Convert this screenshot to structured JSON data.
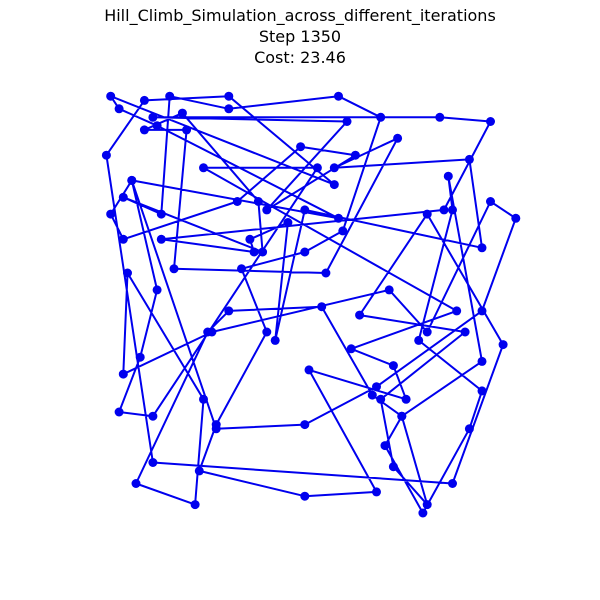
{
  "chart_data": {
    "type": "line",
    "title": "Hill_Climb_Simulation_across_different_iterations",
    "subtitle_step": "Step 1350",
    "subtitle_cost": "Cost: 23.46",
    "xlim": [
      0,
      1
    ],
    "ylim": [
      0,
      1
    ],
    "axes_visible": false,
    "grid": false,
    "colors": {
      "series": "#0000ee"
    },
    "series": [
      {
        "closed": true,
        "x": [
          0.02,
          0.11,
          0.31,
          0.56,
          0.03,
          0.05,
          0.14,
          0.57,
          0.08,
          0.03,
          0.06,
          0.33,
          0.48,
          0.61,
          0.4,
          0.59,
          0.13,
          0.81,
          0.93,
          0.82,
          0.15,
          0.37,
          0.36,
          0.45,
          0.42,
          0.49,
          0.91,
          0.88,
          0.56,
          0.71,
          0.54,
          0.18,
          0.21,
          0.11,
          0.2,
          0.38,
          0.39,
          0.06,
          0.15,
          0.17,
          0.31,
          0.57,
          0.67,
          0.58,
          0.49,
          0.34,
          0.4,
          0.28,
          0.24,
          0.49,
          0.66,
          0.5,
          0.73,
          0.7,
          0.6,
          0.85,
          0.25,
          0.52,
          0.13,
          0.05,
          0.1,
          0.14,
          0.08,
          0.28,
          0.49,
          0.66,
          0.91,
          0.99,
          0.93,
          0.78,
          0.69,
          0.27,
          0.06,
          0.07,
          0.25,
          0.23,
          0.09,
          0.26,
          0.31,
          0.53,
          0.65,
          0.72,
          0.91,
          0.83,
          0.84,
          0.76,
          0.91,
          0.88,
          0.77,
          0.68,
          0.72,
          0.78,
          0.7,
          0.67,
          0.87,
          0.62,
          0.78,
          0.96,
          0.84,
          0.13
        ],
        "y": [
          0.85,
          0.98,
          0.99,
          0.78,
          0.99,
          0.96,
          0.92,
          0.7,
          0.79,
          0.71,
          0.65,
          0.74,
          0.87,
          0.85,
          0.72,
          0.93,
          0.94,
          0.94,
          0.93,
          0.72,
          0.65,
          0.62,
          0.65,
          0.69,
          0.41,
          0.72,
          0.63,
          0.84,
          0.82,
          0.89,
          0.57,
          0.58,
          0.91,
          0.91,
          0.95,
          0.74,
          0.62,
          0.75,
          0.71,
          0.99,
          0.96,
          0.99,
          0.94,
          0.67,
          0.62,
          0.58,
          0.43,
          0.21,
          0.1,
          0.04,
          0.05,
          0.34,
          0.27,
          0.35,
          0.39,
          0.48,
          0.82,
          0.82,
          0.23,
          0.24,
          0.37,
          0.53,
          0.79,
          0.2,
          0.21,
          0.3,
          0.48,
          0.7,
          0.74,
          0.43,
          0.53,
          0.43,
          0.33,
          0.57,
          0.27,
          0.02,
          0.07,
          0.43,
          0.48,
          0.49,
          0.28,
          0.23,
          0.36,
          0.8,
          0.72,
          0.41,
          0.29,
          0.2,
          0.0,
          0.16,
          0.23,
          0.02,
          0.11,
          0.27,
          0.43,
          0.47,
          0.71,
          0.4,
          0.07,
          0.12
        ]
      }
    ]
  }
}
